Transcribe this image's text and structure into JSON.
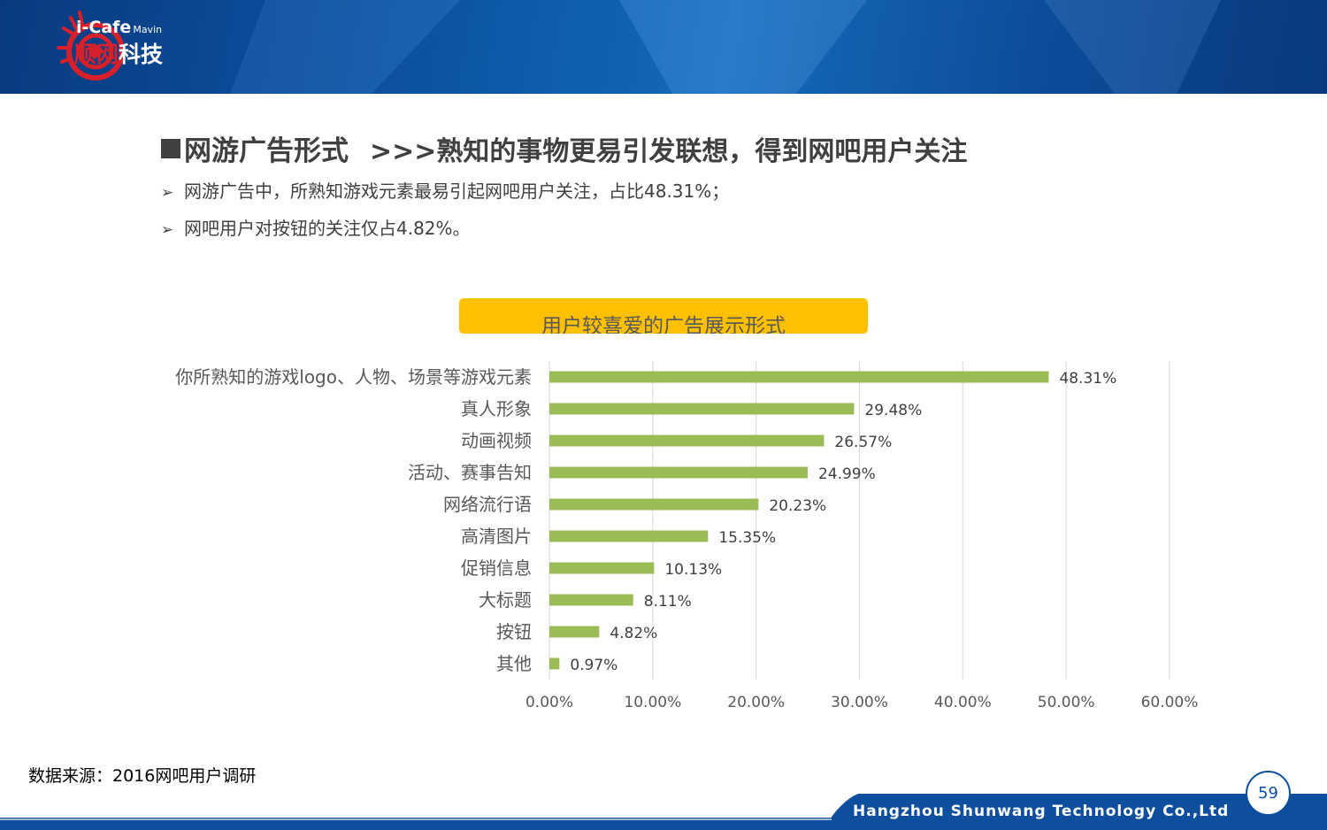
{
  "header": {
    "logo_top": "i-Cafe",
    "logo_top_small": "Mavin",
    "logo_cn_red": "顺网",
    "logo_cn_white": "科技"
  },
  "heading": {
    "title": "网游广告形式",
    "subtitle": ">>>熟知的事物更易引发联想，得到网吧用户关注"
  },
  "bullets": [
    "网游广告中，所熟知游戏元素最易引起网吧用户关注，占比48.31%；",
    "网吧用户对按钮的关注仅占4.82%。"
  ],
  "chart_title": "用户较喜爱的广告展示形式",
  "chart_data": {
    "type": "bar",
    "orientation": "horizontal",
    "title": "用户较喜爱的广告展示形式",
    "categories": [
      "你所熟知的游戏logo、人物、场景等游戏元素",
      "真人形象",
      "动画视频",
      "活动、赛事告知",
      "网络流行语",
      "高清图片",
      "促销信息",
      "大标题",
      "按钮",
      "其他"
    ],
    "values": [
      48.31,
      29.48,
      26.57,
      24.99,
      20.23,
      15.35,
      10.13,
      8.11,
      4.82,
      0.97
    ],
    "value_labels": [
      "48.31%",
      "29.48%",
      "26.57%",
      "24.99%",
      "20.23%",
      "15.35%",
      "10.13%",
      "8.11%",
      "4.82%",
      "0.97%"
    ],
    "xlim": [
      0,
      60
    ],
    "ticks": [
      0,
      10,
      20,
      30,
      40,
      50,
      60
    ],
    "tick_labels": [
      "0.00%",
      "10.00%",
      "20.00%",
      "30.00%",
      "40.00%",
      "50.00%",
      "60.00%"
    ],
    "grid": true,
    "bar_color": "#9bbb59"
  },
  "source": "数据来源：2016网吧用户调研",
  "footer": {
    "company": "Hangzhou Shunwang Technology Co.,Ltd",
    "page_number": "59"
  },
  "colors": {
    "banner": "#0d5cb0",
    "title_box": "#ffc000",
    "footer": "#0d4f9e",
    "logo_red": "#d8202a"
  }
}
